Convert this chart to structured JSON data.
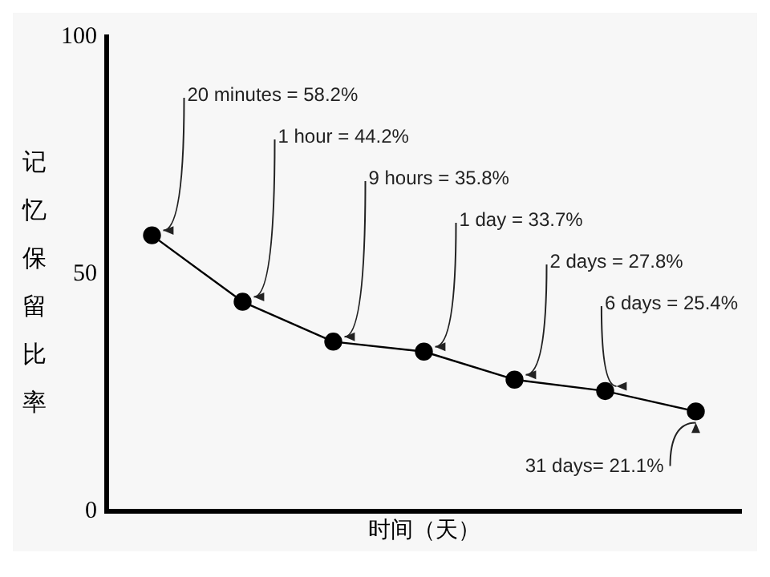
{
  "chart_data": {
    "type": "line",
    "xlabel": "时间（天）",
    "ylabel": "记忆保留比率",
    "categories": [
      null,
      null,
      null,
      null,
      null,
      null,
      null
    ],
    "values": [
      58.2,
      44.2,
      35.8,
      33.7,
      27.8,
      25.4,
      21.1
    ],
    "value_labels": [
      "20 minutes = 58.2%",
      "1 hour = 44.2%",
      "9 hours = 35.8%",
      "1 day = 33.7%",
      "2 days = 27.8%",
      "6 days = 25.4%",
      "31 days= 21.1%"
    ],
    "color": "#000000",
    "ylim": [
      0,
      100
    ],
    "yticks": [
      0,
      50,
      100
    ],
    "grid": false,
    "legend": false,
    "marker": "circle",
    "line_style": "solid",
    "tick_labels": "y"
  }
}
